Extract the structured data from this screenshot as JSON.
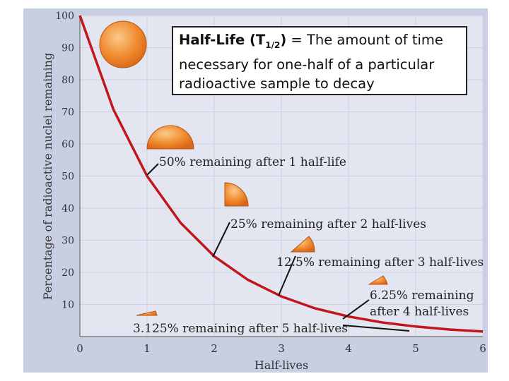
{
  "definition": {
    "term": "Half-Life (T",
    "subscript": "1/2",
    "term_close": ")",
    "text": " = The amount of time necessary for one-half of a particular radioactive sample to decay"
  },
  "chart_data": {
    "type": "line",
    "xlabel": "Half-lives",
    "ylabel": "Percentage of radioactive nuclei remaining",
    "xlim": [
      0,
      6
    ],
    "ylim": [
      0,
      100
    ],
    "xticks": [
      "0",
      "1",
      "2",
      "3",
      "4",
      "5",
      "6"
    ],
    "yticks": [
      "10",
      "20",
      "30",
      "40",
      "50",
      "60",
      "70",
      "80",
      "90",
      "100"
    ],
    "series": [
      {
        "x": [
          0,
          0.5,
          1,
          1.5,
          2,
          2.5,
          3,
          3.5,
          4,
          4.5,
          5,
          5.5,
          6
        ],
        "values": [
          100,
          70.7,
          50,
          35.4,
          25,
          17.7,
          12.5,
          8.8,
          6.25,
          4.4,
          3.125,
          2.2,
          1.56
        ]
      }
    ],
    "line_color": "#c0161c",
    "annotations": [
      {
        "text": "50% remaining after 1 half-life",
        "x": 1,
        "y": 50
      },
      {
        "text": "25% remaining after 2 half-lives",
        "x": 2,
        "y": 25
      },
      {
        "text": "12.5% remaining after 3 half-lives",
        "x": 3,
        "y": 12.5
      },
      {
        "text": "6.25% remaining",
        "text2": "after 4 half-lives",
        "x": 4,
        "y": 6.25
      },
      {
        "text": "3.125% remaining after 5 half-lives",
        "x": 5,
        "y": 3.125
      }
    ]
  }
}
